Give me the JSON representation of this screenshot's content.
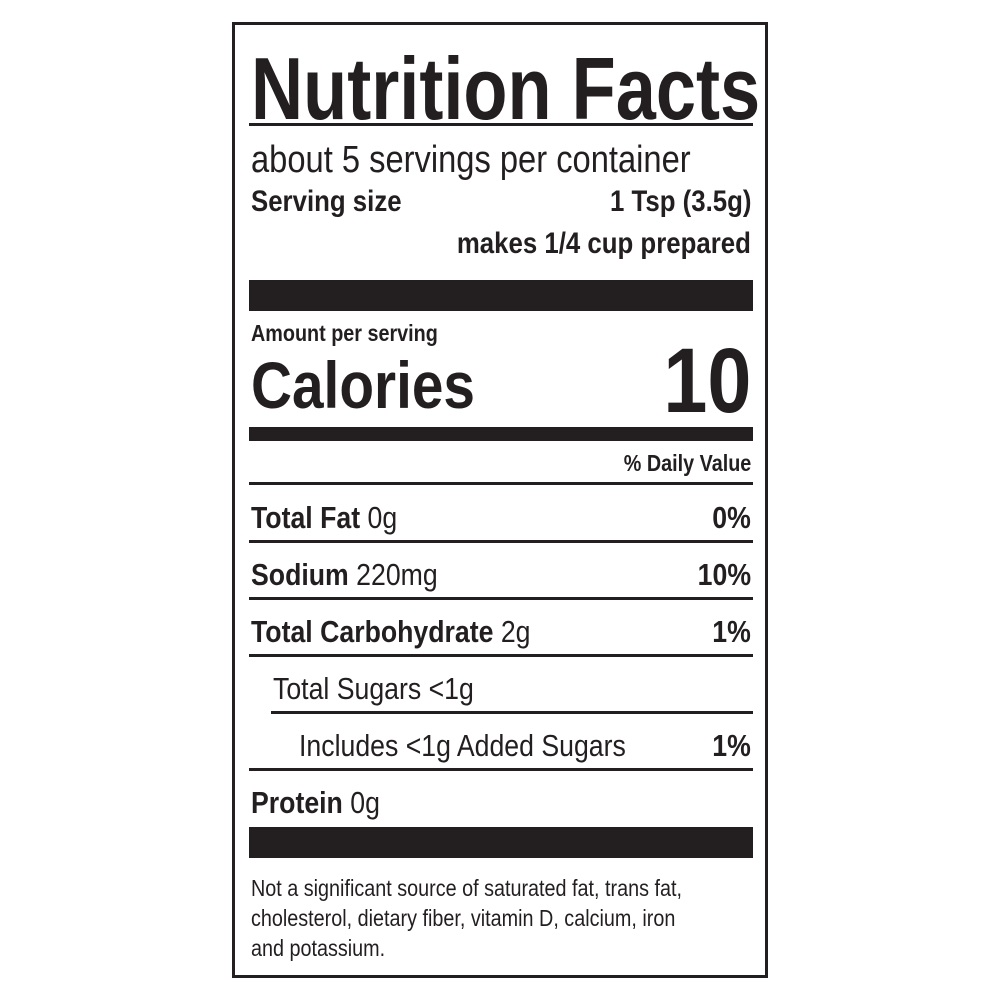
{
  "title": "Nutrition Facts",
  "servings_per_container": "about 5 servings per container",
  "serving_size": {
    "label": "Serving size",
    "value": "1 Tsp (3.5g)",
    "note": "makes 1/4 cup prepared"
  },
  "amount_per_serving": "Amount per serving",
  "calories": {
    "label": "Calories",
    "value": "10"
  },
  "daily_value_header": "% Daily Value",
  "nutrients": [
    {
      "name": "Total Fat",
      "amount": "0g",
      "dv": "0%"
    },
    {
      "name": "Sodium",
      "amount": "220mg",
      "dv": "10%"
    },
    {
      "name": "Total Carbohydrate",
      "amount": "2g",
      "dv": "1%"
    },
    {
      "name": "Total Sugars <1g",
      "amount": "",
      "dv": ""
    },
    {
      "name": "Includes <1g Added Sugars",
      "amount": "",
      "dv": "1%"
    },
    {
      "name": "Protein",
      "amount": "0g",
      "dv": ""
    }
  ],
  "footnote": [
    "Not a significant source of saturated fat, trans fat,",
    "cholesterol, dietary fiber, vitamin D, calcium, iron",
    "and potassium."
  ]
}
